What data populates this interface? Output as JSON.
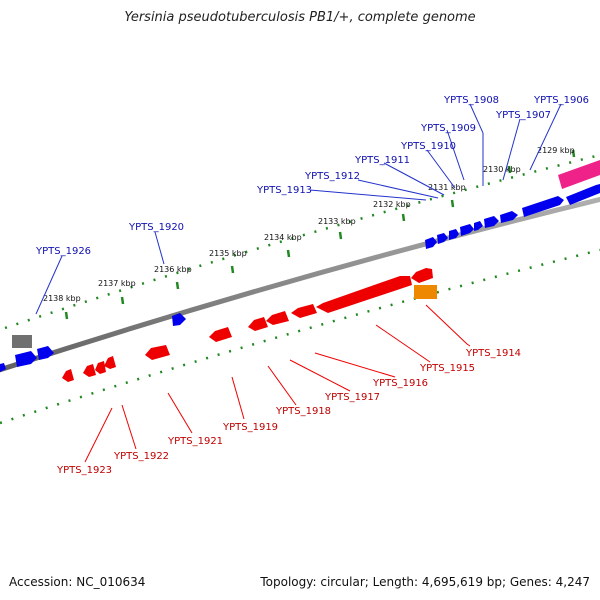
{
  "title": "Yersinia pseudotuberculosis PB1/+, complete genome",
  "footer": {
    "accession": "Accession: NC_010634",
    "summary": "Topology: circular; Length: 4,695,619 bp; Genes: 4,247"
  },
  "tick_labels": [
    "2129 kbp",
    "2130 kbp",
    "2131 kbp",
    "2132 kbp",
    "2133 kbp",
    "2134 kbp",
    "2135 kbp",
    "2136 kbp",
    "2137 kbp",
    "2138 kbp"
  ],
  "plus_strand_genes": [
    "YPTS_1906",
    "YPTS_1907",
    "YPTS_1908",
    "YPTS_1909",
    "YPTS_1910",
    "YPTS_1911",
    "YPTS_1912",
    "YPTS_1913",
    "YPTS_1920",
    "YPTS_1926"
  ],
  "minus_strand_genes": [
    "YPTS_1914",
    "YPTS_1915",
    "YPTS_1916",
    "YPTS_1917",
    "YPTS_1918",
    "YPTS_1919",
    "YPTS_1921",
    "YPTS_1922",
    "YPTS_1923"
  ],
  "colors": {
    "backbone": "#808080",
    "plus_gene": "#0000ee",
    "minus_gene": "#ee0000",
    "tick": "#228822",
    "pink_feature": "#ee2288",
    "orange_feature": "#ee8800",
    "gray_feature": "#707070"
  }
}
